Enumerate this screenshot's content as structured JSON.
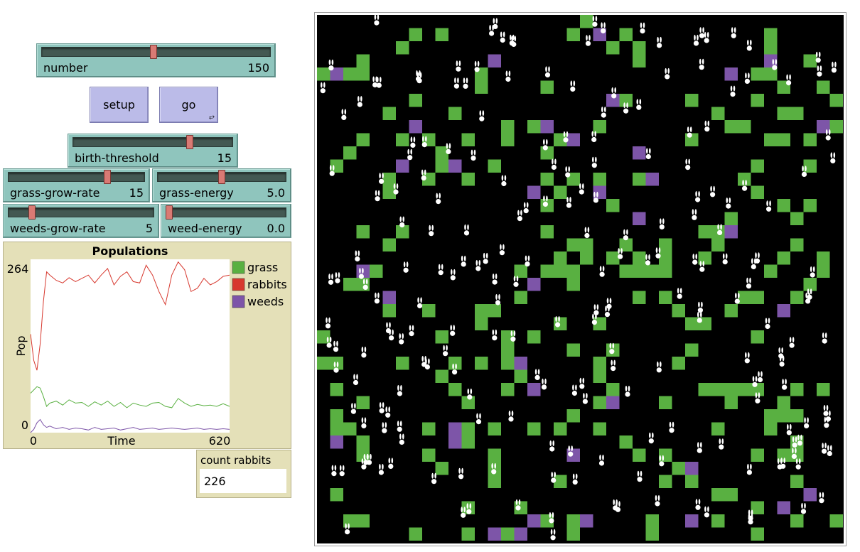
{
  "sliders": {
    "number": {
      "label": "number",
      "value": "150",
      "position": 0.49
    },
    "birth_threshold": {
      "label": "birth-threshold",
      "value": "15",
      "position": 0.74
    },
    "grass_grow_rate": {
      "label": "grass-grow-rate",
      "value": "15",
      "position": 0.74
    },
    "grass_energy": {
      "label": "grass-energy",
      "value": "5.0",
      "position": 0.5
    },
    "weeds_grow_rate": {
      "label": "weeds-grow-rate",
      "value": "5",
      "position": 0.15
    },
    "weed_energy": {
      "label": "weed-energy",
      "value": "0.0",
      "position": 0.0
    }
  },
  "buttons": {
    "setup": "setup",
    "go": "go",
    "forever_glyph": "⥂"
  },
  "plot": {
    "title": "Populations",
    "ylabel": "Pop",
    "xlabel": "Time",
    "y_max_label": "264",
    "y_min_label": "0",
    "x_min_label": "0",
    "x_max_label": "620"
  },
  "monitor": {
    "label": "count rabbits",
    "value": "226"
  },
  "colors": {
    "grass": "#59b041",
    "rabbits": "#d7382e",
    "weeds": "#7d55a8",
    "world_background": "#000000",
    "rabbit": "#ffffff"
  },
  "chart_data": {
    "type": "line",
    "title": "Populations",
    "xlabel": "Time",
    "ylabel": "Pop",
    "xlim": [
      0,
      620
    ],
    "ylim": [
      0,
      264
    ],
    "legend_position": "right",
    "x": [
      0,
      10,
      20,
      30,
      40,
      50,
      60,
      80,
      100,
      120,
      140,
      160,
      180,
      200,
      220,
      240,
      260,
      280,
      300,
      320,
      340,
      360,
      380,
      400,
      420,
      440,
      460,
      480,
      500,
      520,
      540,
      560,
      580,
      600,
      620
    ],
    "series": [
      {
        "name": "rabbits",
        "values": [
          150,
          110,
          95,
          135,
          200,
          245,
          240,
          232,
          228,
          236,
          230,
          235,
          240,
          228,
          240,
          250,
          225,
          238,
          245,
          230,
          228,
          255,
          240,
          215,
          195,
          240,
          260,
          248,
          215,
          220,
          235,
          225,
          230,
          238,
          240
        ]
      },
      {
        "name": "grass",
        "values": [
          60,
          65,
          70,
          68,
          55,
          40,
          45,
          48,
          42,
          50,
          45,
          46,
          40,
          47,
          42,
          48,
          40,
          46,
          38,
          45,
          42,
          40,
          45,
          46,
          40,
          38,
          52,
          45,
          40,
          43,
          41,
          42,
          40,
          44,
          40
        ]
      },
      {
        "name": "weeds",
        "values": [
          0,
          5,
          15,
          20,
          12,
          8,
          10,
          6,
          8,
          5,
          7,
          6,
          4,
          8,
          5,
          6,
          7,
          4,
          6,
          8,
          5,
          6,
          7,
          5,
          6,
          7,
          6,
          5,
          6,
          7,
          5,
          6,
          5,
          6,
          5
        ]
      }
    ]
  }
}
